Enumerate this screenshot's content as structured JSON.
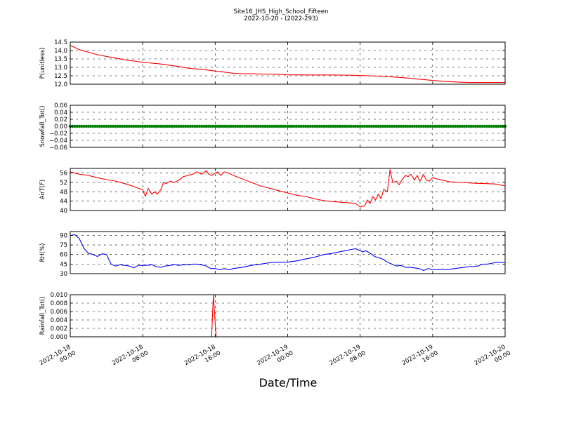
{
  "title": {
    "line1": "Site16_JHS_High_School_Fifteen",
    "line2": "2022-10-20 - (2022-293)"
  },
  "x_axis": {
    "label": "Date/Time",
    "ticks": [
      {
        "line1": "2022-10-18",
        "line2": "00:00",
        "hours": 0
      },
      {
        "line1": "2022-10-18",
        "line2": "08:00",
        "hours": 8
      },
      {
        "line1": "2022-10-18",
        "line2": "16:00",
        "hours": 16
      },
      {
        "line1": "2022-10-19",
        "line2": "00:00",
        "hours": 24
      },
      {
        "line1": "2022-10-19",
        "line2": "08:00",
        "hours": 32
      },
      {
        "line1": "2022-10-19",
        "line2": "16:00",
        "hours": 40
      },
      {
        "line1": "2022-10-20",
        "line2": "00:00",
        "hours": 48
      }
    ]
  },
  "chart_data": [
    {
      "type": "line",
      "ylabel": "P(unitless)",
      "ylim": [
        12.0,
        14.5
      ],
      "yticks": [
        "12.0",
        "12.5",
        "13.0",
        "13.5",
        "14.0",
        "14.5"
      ],
      "ytick_values": [
        12.0,
        12.5,
        13.0,
        13.5,
        14.0,
        14.5
      ],
      "grid": true,
      "series": [
        {
          "color": "#ff0000",
          "x": [
            0,
            1,
            2,
            3,
            4,
            5,
            6,
            7,
            8,
            9,
            10,
            11,
            12,
            13,
            14,
            15,
            16,
            17,
            18,
            19,
            20,
            21,
            22,
            23,
            24,
            26,
            28,
            30,
            32,
            33,
            34,
            35,
            36,
            37,
            38,
            39,
            40,
            41,
            42,
            43,
            44,
            45,
            46,
            47,
            48
          ],
          "y": [
            14.3,
            14.05,
            13.9,
            13.75,
            13.65,
            13.55,
            13.45,
            13.38,
            13.3,
            13.25,
            13.2,
            13.12,
            13.05,
            12.95,
            12.9,
            12.85,
            12.78,
            12.72,
            12.65,
            12.62,
            12.62,
            12.6,
            12.6,
            12.58,
            12.56,
            12.55,
            12.55,
            12.54,
            12.52,
            12.5,
            12.48,
            12.45,
            12.42,
            12.38,
            12.32,
            12.28,
            12.22,
            12.18,
            12.15,
            12.12,
            12.1,
            12.1,
            12.1,
            12.1,
            12.1
          ]
        }
      ]
    },
    {
      "type": "scatter",
      "ylabel": "Snowfall_Tot()",
      "ylim": [
        -0.06,
        0.06
      ],
      "yticks": [
        "−0.06",
        "−0.04",
        "−0.02",
        "0.00",
        "0.02",
        "0.04",
        "0.06"
      ],
      "ytick_values": [
        -0.06,
        -0.04,
        -0.02,
        0.0,
        0.02,
        0.04,
        0.06
      ],
      "grid": true,
      "series": [
        {
          "color": "#008000",
          "x_start": 0,
          "x_end": 48,
          "y": 0.0
        }
      ]
    },
    {
      "type": "line",
      "ylabel": "AirT(F)",
      "ylim": [
        40,
        58
      ],
      "yticks": [
        "40",
        "44",
        "48",
        "52",
        "56"
      ],
      "ytick_values": [
        40,
        44,
        48,
        52,
        56
      ],
      "grid": true,
      "series": [
        {
          "color": "#ff0000",
          "x": [
            0,
            1,
            2,
            3,
            4,
            5,
            6,
            7,
            7.5,
            8,
            8.3,
            8.6,
            9,
            9.3,
            9.6,
            10,
            10.3,
            10.6,
            11,
            11.5,
            12,
            12.5,
            13,
            13.5,
            14,
            14.5,
            15,
            15.3,
            15.6,
            16,
            16.3,
            16.6,
            17,
            17.5,
            18,
            19,
            20,
            21,
            22,
            23,
            24,
            25,
            26,
            27,
            28,
            29,
            30,
            31,
            31.5,
            32,
            32.5,
            32.8,
            33.1,
            33.4,
            33.7,
            34,
            34.3,
            34.6,
            35,
            35.3,
            35.6,
            36,
            36.3,
            36.6,
            37,
            37.3,
            37.6,
            38,
            38.3,
            38.6,
            39,
            39.3,
            39.6,
            40,
            41,
            42,
            43,
            44,
            45,
            46,
            47,
            48
          ],
          "y": [
            56.5,
            55.5,
            55,
            54,
            53.2,
            52.6,
            51.5,
            50.3,
            49.5,
            48.8,
            46,
            49.5,
            47,
            48,
            47,
            49,
            52,
            51.5,
            52.5,
            52,
            53,
            54.5,
            55,
            55.5,
            56.5,
            55.5,
            57,
            55.5,
            55,
            56,
            56.5,
            55,
            56.5,
            56,
            55,
            53.5,
            52,
            50.5,
            49.5,
            48.5,
            47.5,
            46.5,
            46,
            45,
            44.2,
            43.8,
            43.5,
            43.2,
            43,
            41.5,
            42,
            44.5,
            43,
            46,
            44.5,
            47,
            45,
            49,
            48,
            57.5,
            52,
            52.5,
            51,
            53,
            55,
            54.5,
            55.5,
            53,
            55,
            52.5,
            55.5,
            53,
            52.5,
            54,
            53,
            52.2,
            52,
            51.8,
            51.6,
            51.5,
            51.3,
            50.5
          ]
        }
      ]
    },
    {
      "type": "line",
      "ylabel": "RH(%)",
      "ylim": [
        30,
        96
      ],
      "yticks": [
        "30",
        "45",
        "60",
        "75",
        "90"
      ],
      "ytick_values": [
        30,
        45,
        60,
        75,
        90
      ],
      "grid": true,
      "series": [
        {
          "color": "#0000ff",
          "x": [
            0,
            0.5,
            1,
            1.5,
            2,
            2.5,
            3,
            3.5,
            4,
            4.5,
            5,
            5.5,
            6,
            6.5,
            7,
            7.5,
            8,
            8.5,
            9,
            9.5,
            10,
            10.5,
            11,
            11.5,
            12,
            12.5,
            13,
            13.5,
            14,
            14.5,
            15,
            15.5,
            16,
            16.5,
            17,
            17.5,
            18,
            19,
            20,
            21,
            22,
            23,
            24,
            25,
            26,
            27,
            28,
            29,
            30,
            31,
            31.5,
            32,
            32.3,
            32.6,
            33,
            33.3,
            33.6,
            34,
            34.3,
            34.6,
            35,
            35.5,
            36,
            36.5,
            37,
            37.5,
            38,
            38.5,
            39,
            39.5,
            40,
            40.5,
            41,
            41.5,
            42,
            42.5,
            43,
            43.5,
            44,
            44.5,
            45,
            45.5,
            46,
            46.5,
            47,
            47.5,
            48
          ],
          "y": [
            90,
            91,
            85,
            70,
            62,
            60,
            57,
            61,
            60,
            45,
            42,
            44,
            43,
            42,
            39,
            43,
            43,
            43,
            44,
            41,
            40,
            42,
            43,
            44,
            43,
            44,
            44,
            45,
            45,
            44,
            42,
            38,
            38,
            36,
            38,
            36,
            38,
            40,
            43,
            45,
            47,
            48,
            48,
            50,
            53,
            56,
            60,
            62,
            65,
            68,
            69,
            66,
            64,
            66,
            63,
            60,
            57,
            55,
            54,
            52,
            48,
            45,
            42,
            43,
            40,
            40,
            39,
            38,
            35,
            38,
            36,
            36,
            37,
            36,
            37,
            38,
            39,
            40,
            41,
            41,
            42,
            45,
            45,
            46,
            48,
            47,
            48
          ]
        }
      ]
    },
    {
      "type": "line",
      "ylabel": "Rainfall_Tot()",
      "ylim": [
        0.0,
        0.01
      ],
      "yticks": [
        "0.000",
        "0.002",
        "0.004",
        "0.006",
        "0.008",
        "0.010"
      ],
      "ytick_values": [
        0.0,
        0.002,
        0.004,
        0.006,
        0.008,
        0.01
      ],
      "grid": true,
      "series": [
        {
          "color": "#ff0000",
          "x": [
            0,
            15.6,
            15.8,
            16.1,
            48
          ],
          "y": [
            0,
            0,
            0.01,
            0,
            0
          ]
        }
      ]
    }
  ]
}
